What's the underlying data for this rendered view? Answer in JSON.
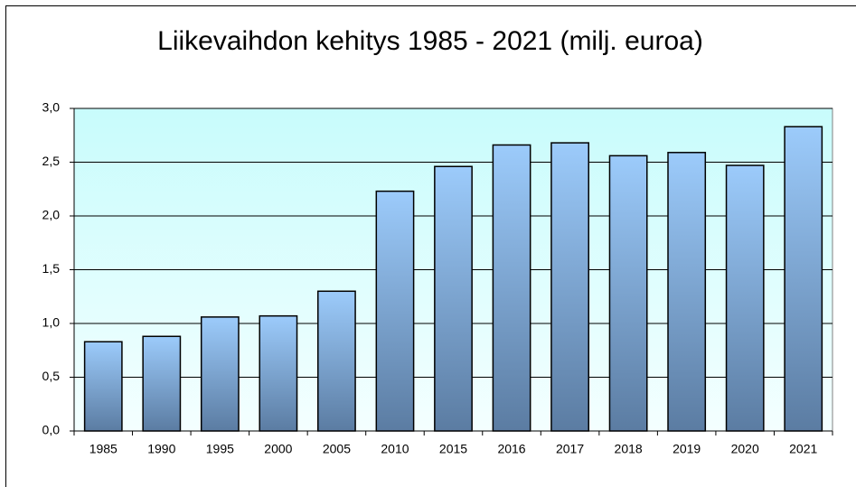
{
  "chart_data": {
    "type": "bar",
    "title": "Liikevaihdon kehitys 1985 - 2021 (milj. euroa)",
    "categories": [
      "1985",
      "1990",
      "1995",
      "2000",
      "2005",
      "2010",
      "2015",
      "2016",
      "2017",
      "2018",
      "2019",
      "2020",
      "2021"
    ],
    "values": [
      0.83,
      0.88,
      1.06,
      1.07,
      1.3,
      2.23,
      2.46,
      2.66,
      2.68,
      2.56,
      2.59,
      2.47,
      2.83
    ],
    "color": "#8fbfee",
    "ylim": [
      0,
      3
    ],
    "yticks": [
      {
        "value": 0,
        "label": "0,0"
      },
      {
        "value": 0.5,
        "label": "0,5"
      },
      {
        "value": 1,
        "label": "1,0"
      },
      {
        "value": 1.5,
        "label": "1,5"
      },
      {
        "value": 2,
        "label": "2,0"
      },
      {
        "value": 2.5,
        "label": "2,5"
      },
      {
        "value": 3,
        "label": "3,0"
      }
    ],
    "grid": true
  }
}
